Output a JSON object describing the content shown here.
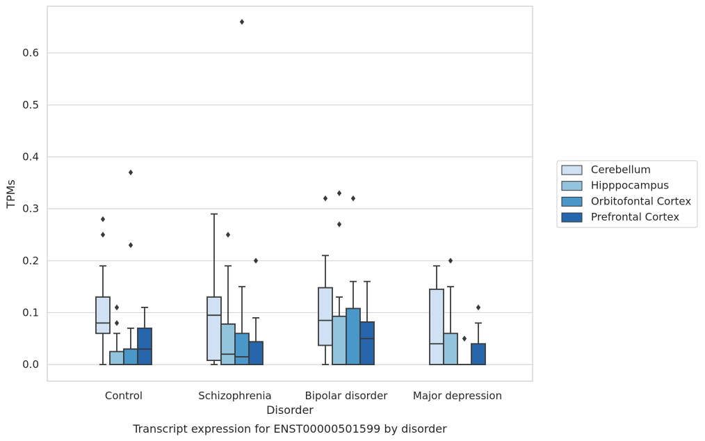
{
  "chart_data": {
    "type": "box",
    "caption": "Transcript expression for ENST00000501599 by disorder",
    "xlabel": "Disorder",
    "ylabel": "TPMs",
    "ylim": [
      -0.032,
      0.69
    ],
    "yticks": [
      0.0,
      0.1,
      0.2,
      0.3,
      0.4,
      0.5,
      0.6
    ],
    "ytick_labels": [
      "0.0",
      "0.1",
      "0.2",
      "0.3",
      "0.4",
      "0.5",
      "0.6"
    ],
    "grid": "horizontal",
    "legend_position": "right",
    "categories": [
      "Control",
      "Schizophrenia",
      "Bipolar disorder",
      "Major depression"
    ],
    "series": [
      {
        "name": "Cerebellum",
        "color": "#cfe1f2",
        "boxes": [
          {
            "whislo": 0.0,
            "q1": 0.06,
            "med": 0.08,
            "q3": 0.13,
            "whishi": 0.19,
            "fliers": [
              0.25,
              0.28
            ]
          },
          {
            "whislo": 0.0,
            "q1": 0.008,
            "med": 0.095,
            "q3": 0.13,
            "whishi": 0.29,
            "fliers": []
          },
          {
            "whislo": 0.0,
            "q1": 0.037,
            "med": 0.085,
            "q3": 0.148,
            "whishi": 0.21,
            "fliers": [
              0.32
            ]
          },
          {
            "whislo": 0.0,
            "q1": 0.0,
            "med": 0.04,
            "q3": 0.145,
            "whishi": 0.19,
            "fliers": []
          }
        ]
      },
      {
        "name": "Hipppocampus",
        "color": "#93c4de",
        "boxes": [
          {
            "whislo": 0.0,
            "q1": 0.0,
            "med": 0.0,
            "q3": 0.025,
            "whishi": 0.06,
            "fliers": [
              0.08,
              0.11
            ]
          },
          {
            "whislo": 0.0,
            "q1": 0.0,
            "med": 0.02,
            "q3": 0.078,
            "whishi": 0.19,
            "fliers": [
              0.25
            ]
          },
          {
            "whislo": 0.0,
            "q1": 0.0,
            "med": 0.0,
            "q3": 0.093,
            "whishi": 0.13,
            "fliers": [
              0.27,
              0.33
            ]
          },
          {
            "whislo": 0.0,
            "q1": 0.0,
            "med": 0.0,
            "q3": 0.06,
            "whishi": 0.15,
            "fliers": [
              0.2
            ]
          }
        ]
      },
      {
        "name": "Orbitofontal Cortex",
        "color": "#4a98c9",
        "boxes": [
          {
            "whislo": 0.0,
            "q1": 0.0,
            "med": 0.0,
            "q3": 0.03,
            "whishi": 0.07,
            "fliers": [
              0.23,
              0.37
            ]
          },
          {
            "whislo": 0.0,
            "q1": 0.0,
            "med": 0.015,
            "q3": 0.06,
            "whishi": 0.15,
            "fliers": [
              0.66
            ]
          },
          {
            "whislo": 0.0,
            "q1": 0.0,
            "med": 0.0,
            "q3": 0.108,
            "whishi": 0.16,
            "fliers": [
              0.32
            ]
          },
          {
            "whislo": 0.0,
            "q1": 0.0,
            "med": 0.0,
            "q3": 0.0,
            "whishi": 0.0,
            "fliers": [
              0.05
            ]
          }
        ]
      },
      {
        "name": "Prefrontal Cortex",
        "color": "#2666ad",
        "boxes": [
          {
            "whislo": 0.0,
            "q1": 0.0,
            "med": 0.03,
            "q3": 0.07,
            "whishi": 0.11,
            "fliers": []
          },
          {
            "whislo": 0.0,
            "q1": 0.0,
            "med": 0.0,
            "q3": 0.044,
            "whishi": 0.09,
            "fliers": [
              0.2
            ]
          },
          {
            "whislo": 0.0,
            "q1": 0.0,
            "med": 0.05,
            "q3": 0.082,
            "whishi": 0.16,
            "fliers": []
          },
          {
            "whislo": 0.0,
            "q1": 0.0,
            "med": 0.0,
            "q3": 0.04,
            "whishi": 0.08,
            "fliers": [
              0.11
            ]
          }
        ]
      }
    ],
    "colors": {
      "grid": "#d5d5d5",
      "frame": "#cccccc",
      "line": "#3a3a3a",
      "text": "#262626"
    }
  }
}
